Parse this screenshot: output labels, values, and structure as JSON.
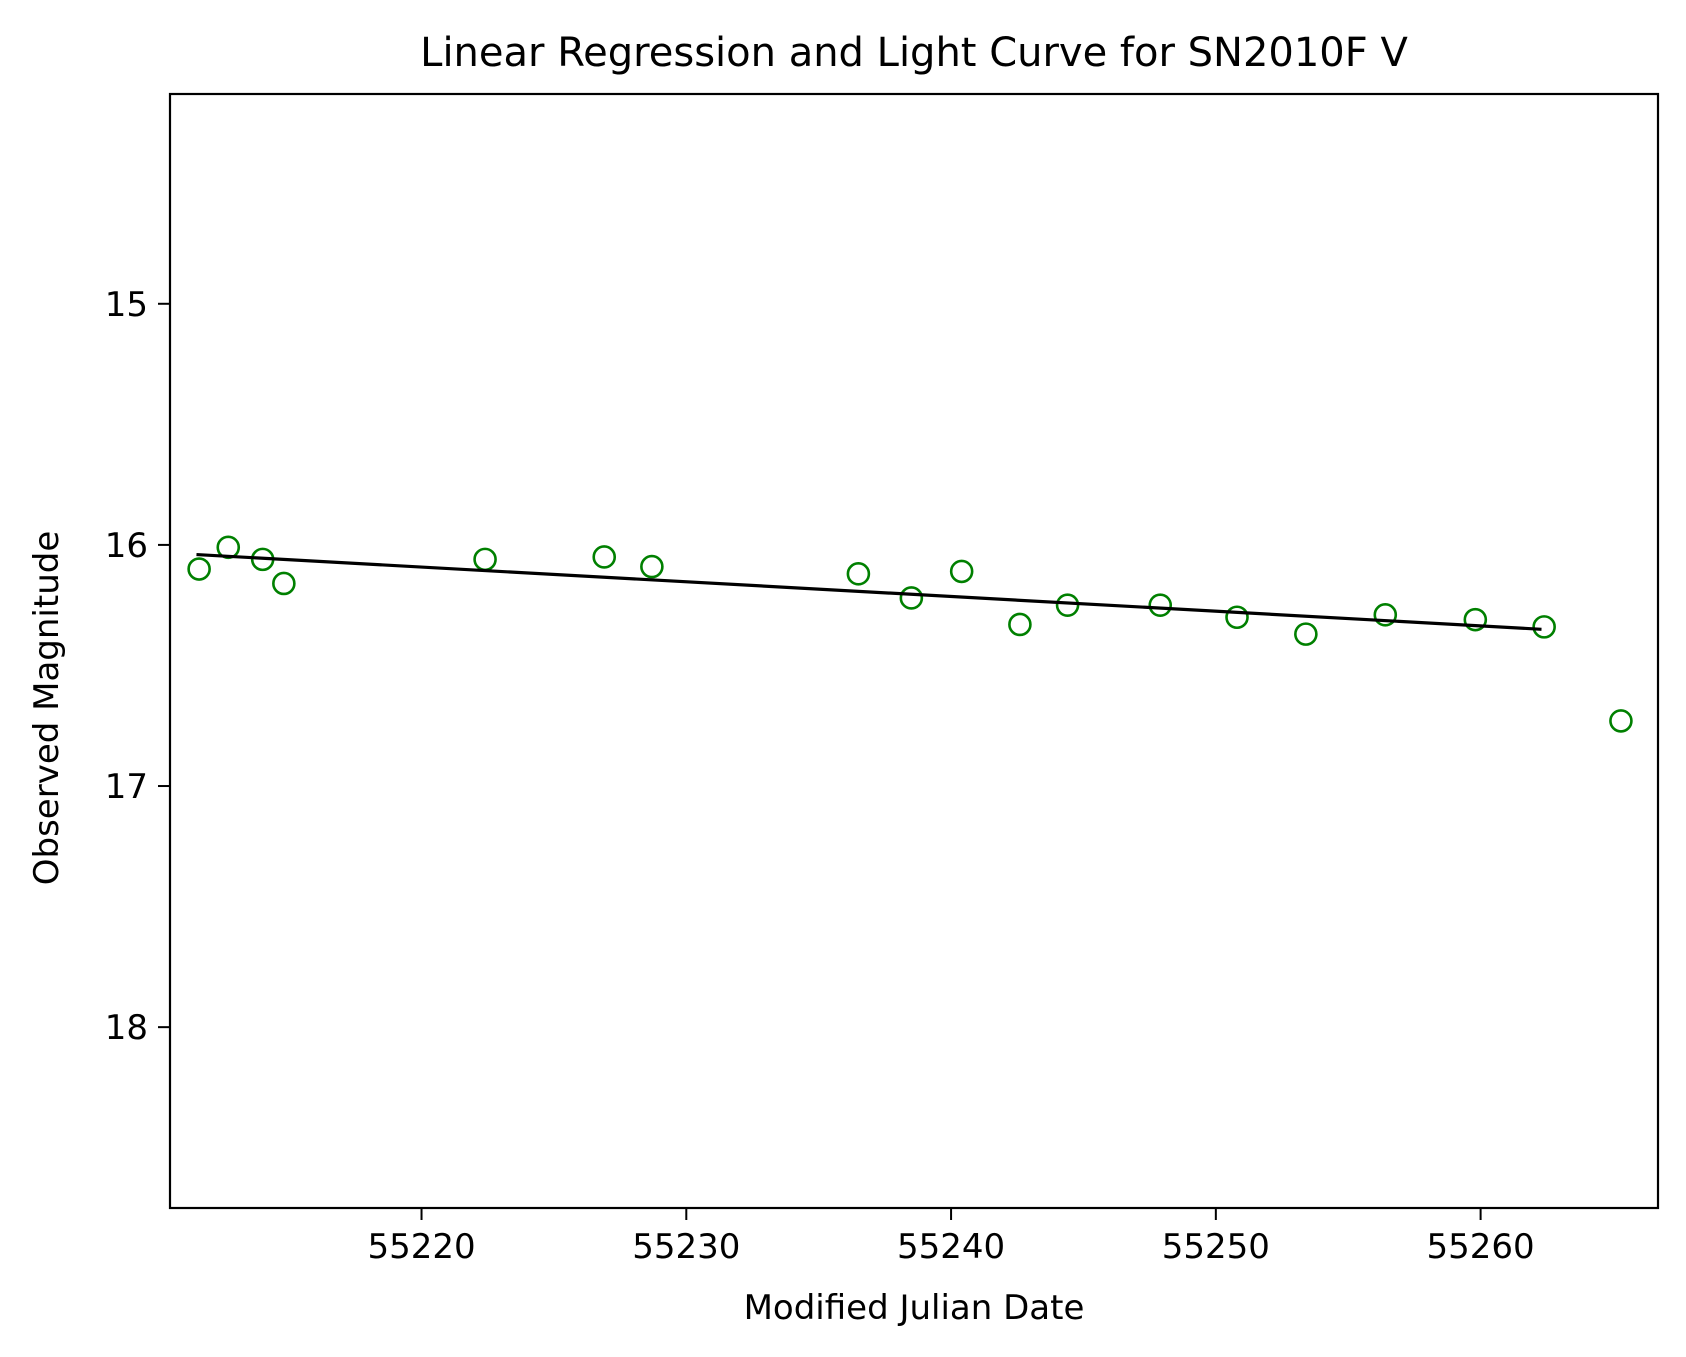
{
  "chart_data": {
    "type": "scatter",
    "title": "Linear Regression and Light Curve for SN2010F V",
    "xlabel": "Modified Julian Date",
    "ylabel": "Observed Magnitude",
    "xlim": [
      55210.5,
      55266.7
    ],
    "ylim": [
      18.75,
      14.13
    ],
    "y_inverted": true,
    "grid": false,
    "xticks": [
      55220,
      55230,
      55240,
      55250,
      55260
    ],
    "yticks": [
      15,
      16,
      17,
      18
    ],
    "series": [
      {
        "kind": "scatter",
        "color": "#008000",
        "marker": "open-circle",
        "points": [
          {
            "x": 55211.6,
            "y": 16.1
          },
          {
            "x": 55212.7,
            "y": 16.01
          },
          {
            "x": 55214.0,
            "y": 16.06
          },
          {
            "x": 55214.8,
            "y": 16.16
          },
          {
            "x": 55222.4,
            "y": 16.06
          },
          {
            "x": 55226.9,
            "y": 16.05
          },
          {
            "x": 55228.7,
            "y": 16.09
          },
          {
            "x": 55236.5,
            "y": 16.12
          },
          {
            "x": 55238.5,
            "y": 16.22
          },
          {
            "x": 55240.4,
            "y": 16.11
          },
          {
            "x": 55242.6,
            "y": 16.33
          },
          {
            "x": 55244.4,
            "y": 16.25
          },
          {
            "x": 55247.9,
            "y": 16.25
          },
          {
            "x": 55250.8,
            "y": 16.3
          },
          {
            "x": 55253.4,
            "y": 16.37
          },
          {
            "x": 55256.4,
            "y": 16.29
          },
          {
            "x": 55259.8,
            "y": 16.31
          },
          {
            "x": 55262.4,
            "y": 16.34
          },
          {
            "x": 55265.3,
            "y": 16.73
          }
        ]
      },
      {
        "kind": "line",
        "color": "#000000",
        "points": [
          {
            "x": 55211.5,
            "y": 16.04
          },
          {
            "x": 55262.3,
            "y": 16.35
          }
        ]
      }
    ]
  }
}
